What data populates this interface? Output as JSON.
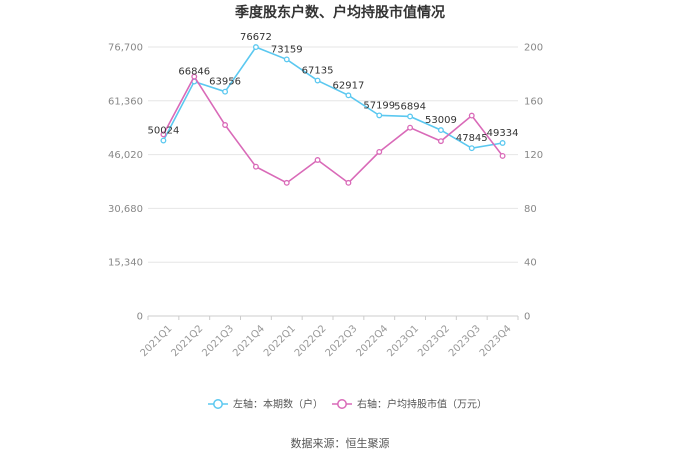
{
  "chart_data": {
    "type": "line",
    "title": "季度股东户数、户均持股市值情况",
    "categories": [
      "2021Q1",
      "2021Q2",
      "2021Q3",
      "2021Q4",
      "2022Q1",
      "2022Q2",
      "2022Q3",
      "2022Q4",
      "2023Q1",
      "2023Q2",
      "2023Q3",
      "2023Q4"
    ],
    "left_axis": {
      "ylim": [
        0,
        76700
      ],
      "ticks": [
        "0",
        "15,340",
        "30,680",
        "46,020",
        "61,360",
        "76,700"
      ]
    },
    "right_axis": {
      "ylim": [
        0,
        200
      ],
      "ticks": [
        "0",
        "40",
        "80",
        "120",
        "160",
        "200"
      ]
    },
    "grid": true,
    "legend_position": "bottom",
    "series": [
      {
        "name": "左轴：本期数（户）",
        "axis": "left",
        "color": "#5bc8f0",
        "values": [
          50024,
          66846,
          63956,
          76672,
          73159,
          67135,
          62917,
          57199,
          56894,
          53009,
          47845,
          49334
        ],
        "labels": [
          "50024",
          "66846",
          "63956",
          "76672",
          "73159",
          "67135",
          "62917",
          "57199",
          "56894",
          "53009",
          "47845",
          "49334"
        ]
      },
      {
        "name": "右轴：户均持股市值（万元）",
        "axis": "right",
        "color": "#d96ab8",
        "values": [
          135,
          178,
          142,
          111,
          99,
          116,
          99,
          122,
          140,
          130,
          149,
          119
        ]
      }
    ]
  },
  "source": "数据来源：恒生聚源"
}
